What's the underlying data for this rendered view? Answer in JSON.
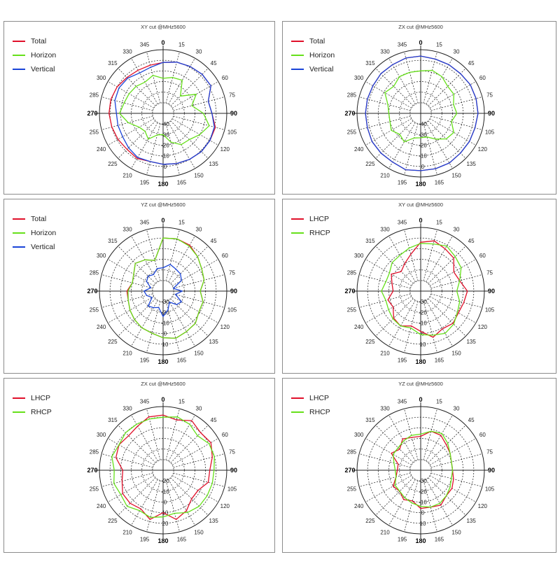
{
  "colors": {
    "total": "#e0102a",
    "horizon": "#66e01a",
    "vertical": "#1a44d8",
    "lhcp": "#e0102a",
    "rhcp": "#66e01a"
  },
  "angle_labels": [
    "0",
    "15",
    "30",
    "45",
    "60",
    "75",
    "90",
    "105",
    "120",
    "135",
    "150",
    "165",
    "180",
    "195",
    "210",
    "225",
    "240",
    "255",
    "270",
    "285",
    "300",
    "315",
    "330",
    "345"
  ],
  "chart_data": [
    {
      "type": "polar",
      "title": "XY cut @MHz5600",
      "rlim": [
        -50,
        10
      ],
      "rings": [
        -40,
        -30,
        -20,
        -10,
        0
      ],
      "ring_labels": [
        "-40",
        "-30",
        "-20",
        "-10",
        "0"
      ],
      "legend_placement": "top-left",
      "series": [
        {
          "name": "Total",
          "color": "#e0102a",
          "angles": [
            0,
            15,
            30,
            45,
            60,
            75,
            90,
            105,
            120,
            135,
            150,
            165,
            180,
            195,
            210,
            225,
            240,
            255,
            270,
            285,
            300,
            315,
            330,
            345
          ],
          "values": [
            -2,
            0,
            1,
            2,
            2,
            -6,
            -4,
            1,
            1,
            1,
            0,
            -1,
            -2,
            -3,
            -1,
            -2,
            -1,
            0,
            1,
            1,
            0,
            -2,
            -3,
            -3
          ]
        },
        {
          "name": "Horizon",
          "color": "#66e01a",
          "angles": [
            0,
            15,
            30,
            45,
            60,
            75,
            90,
            105,
            120,
            135,
            150,
            165,
            180,
            195,
            210,
            225,
            240,
            255,
            270,
            285,
            300,
            315,
            330,
            345
          ],
          "values": [
            -17,
            -15,
            -14,
            -27,
            -14,
            -22,
            -12,
            -5,
            -10,
            -15,
            -16,
            -22,
            -30,
            -29,
            -22,
            -26,
            -24,
            -16,
            -9,
            -12,
            -13,
            -14,
            -16,
            -13
          ]
        },
        {
          "name": "Vertical",
          "color": "#1a44d8",
          "angles": [
            0,
            15,
            30,
            45,
            60,
            75,
            90,
            105,
            120,
            135,
            150,
            165,
            180,
            195,
            210,
            225,
            240,
            255,
            270,
            285,
            300,
            315,
            330,
            345
          ],
          "values": [
            -2,
            0,
            1,
            2,
            2,
            -6,
            -4,
            0,
            1,
            1,
            0,
            -1,
            -2,
            -3,
            -2,
            -4,
            -6,
            -6,
            -6,
            -3,
            -2,
            -3,
            -6,
            -5
          ]
        }
      ]
    },
    {
      "type": "polar",
      "title": "ZX cut @MHz5600",
      "rlim": [
        -50,
        10
      ],
      "rings": [
        -40,
        -30,
        -20,
        -10,
        0
      ],
      "ring_labels": [
        "-40",
        "-30",
        "-20",
        "-10",
        "0"
      ],
      "legend_placement": "top-left",
      "series": [
        {
          "name": "Total",
          "color": "#e0102a",
          "angles": [
            0,
            15,
            30,
            45,
            60,
            75,
            90,
            105,
            120,
            135,
            150,
            165,
            180,
            195,
            210,
            225,
            240,
            255,
            270,
            285,
            300,
            315,
            330,
            345
          ],
          "values": [
            4,
            3,
            3,
            3,
            4,
            4,
            4,
            3,
            3,
            3,
            4,
            4,
            4,
            5,
            3,
            3,
            3,
            2,
            2,
            2,
            2,
            3,
            3,
            4
          ]
        },
        {
          "name": "Horizon",
          "color": "#66e01a",
          "angles": [
            0,
            15,
            30,
            45,
            60,
            75,
            90,
            105,
            120,
            135,
            150,
            165,
            180,
            195,
            210,
            225,
            240,
            255,
            270,
            285,
            300,
            315,
            330,
            345
          ],
          "values": [
            -10,
            -8,
            -10,
            -14,
            -14,
            -18,
            -16,
            -20,
            -14,
            -16,
            -22,
            -27,
            -27,
            -26,
            -19,
            -22,
            -18,
            -20,
            -20,
            -18,
            -11,
            -14,
            -10,
            -10
          ]
        },
        {
          "name": "Vertical",
          "color": "#1a44d8",
          "angles": [
            0,
            15,
            30,
            45,
            60,
            75,
            90,
            105,
            120,
            135,
            150,
            165,
            180,
            195,
            210,
            225,
            240,
            255,
            270,
            285,
            300,
            315,
            330,
            345
          ],
          "values": [
            4,
            3,
            3,
            3,
            4,
            4,
            4,
            3,
            3,
            3,
            4,
            4,
            4,
            5,
            3,
            3,
            3,
            2,
            2,
            2,
            2,
            3,
            3,
            4
          ]
        }
      ]
    },
    {
      "type": "polar",
      "title": "YZ cut @MHz5600",
      "rlim": [
        -40,
        20
      ],
      "rings": [
        -30,
        -20,
        -10,
        0,
        10
      ],
      "ring_labels": [
        "-30",
        "-20",
        "-10",
        "0",
        "10"
      ],
      "legend_placement": "top-left",
      "series": [
        {
          "name": "Total",
          "color": "#e0102a",
          "angles": [
            0,
            15,
            30,
            45,
            60,
            75,
            90,
            105,
            120,
            135,
            150,
            165,
            180,
            195,
            210,
            225,
            240,
            255,
            270,
            285,
            300,
            315,
            330,
            345
          ],
          "values": [
            10,
            11,
            10,
            6,
            2,
            0,
            -5,
            -1,
            -1,
            3,
            4,
            6,
            4,
            1,
            0,
            -2,
            -4,
            -6,
            -6,
            -10,
            -8,
            -3,
            -6,
            -10
          ]
        },
        {
          "name": "Horizon",
          "color": "#66e01a",
          "angles": [
            0,
            15,
            30,
            45,
            60,
            75,
            90,
            105,
            120,
            135,
            150,
            165,
            180,
            195,
            210,
            225,
            240,
            255,
            270,
            285,
            300,
            315,
            330,
            345
          ],
          "values": [
            10,
            11,
            9,
            6,
            2,
            0,
            -5,
            -1,
            -1,
            3,
            4,
            6,
            4,
            1,
            0,
            -2,
            -4,
            -6,
            -7,
            -10,
            -8,
            -3,
            -6,
            -10
          ]
        },
        {
          "name": "Vertical",
          "color": "#1a44d8",
          "angles": [
            0,
            15,
            30,
            45,
            60,
            75,
            90,
            105,
            120,
            135,
            150,
            165,
            180,
            195,
            210,
            225,
            240,
            255,
            270,
            285,
            300,
            315,
            330,
            345
          ],
          "values": [
            -18,
            -14,
            -16,
            -17,
            -20,
            -30,
            -22,
            -28,
            -20,
            -22,
            -28,
            -22,
            -16,
            -24,
            -22,
            -20,
            -28,
            -24,
            -22,
            -28,
            -22,
            -20,
            -22,
            -18
          ]
        }
      ]
    },
    {
      "type": "polar",
      "title": "XY cut @MHz5600",
      "rlim": [
        -40,
        20
      ],
      "rings": [
        -30,
        -20,
        -10,
        0,
        10
      ],
      "ring_labels": [
        "-30",
        "-20",
        "-10",
        "0",
        "10"
      ],
      "legend_placement": "top-left",
      "series": [
        {
          "name": "LHCP",
          "color": "#e0102a",
          "angles": [
            0,
            15,
            30,
            45,
            60,
            75,
            90,
            105,
            120,
            135,
            150,
            165,
            180,
            195,
            210,
            225,
            240,
            255,
            270,
            285,
            300,
            315,
            330,
            345
          ],
          "values": [
            6,
            9,
            6,
            4,
            -4,
            -2,
            4,
            2,
            1,
            3,
            1,
            5,
            -2,
            -6,
            -2,
            -4,
            -10,
            -8,
            -14,
            -12,
            -8,
            -14,
            -10,
            -4
          ]
        },
        {
          "name": "RHCP",
          "color": "#66e01a",
          "angles": [
            0,
            15,
            30,
            45,
            60,
            75,
            90,
            105,
            120,
            135,
            150,
            165,
            180,
            195,
            210,
            225,
            240,
            255,
            270,
            285,
            300,
            315,
            330,
            345
          ],
          "values": [
            5,
            6,
            9,
            6,
            4,
            -2,
            -6,
            -2,
            0,
            4,
            6,
            3,
            1,
            -4,
            -2,
            -3,
            -5,
            -6,
            -3,
            -6,
            -6,
            -2,
            -1,
            2
          ]
        }
      ]
    },
    {
      "type": "polar",
      "title": "ZX cut @MHz5600",
      "rlim": [
        -30,
        30
      ],
      "rings": [
        -20,
        -10,
        0,
        10,
        20
      ],
      "ring_labels": [
        "-20",
        "-10",
        "0",
        "10",
        "20"
      ],
      "legend_placement": "top-left",
      "series": [
        {
          "name": "LHCP",
          "color": "#e0102a",
          "angles": [
            0,
            15,
            30,
            45,
            60,
            75,
            90,
            105,
            120,
            135,
            150,
            165,
            180,
            195,
            210,
            225,
            240,
            255,
            270,
            285,
            300,
            315,
            330,
            345
          ],
          "values": [
            22,
            19,
            24,
            20,
            22,
            18,
            14,
            14,
            8,
            8,
            14,
            18,
            10,
            18,
            12,
            14,
            14,
            10,
            8,
            16,
            18,
            16,
            18,
            22
          ]
        },
        {
          "name": "RHCP",
          "color": "#66e01a",
          "angles": [
            0,
            15,
            30,
            45,
            60,
            75,
            90,
            105,
            120,
            135,
            150,
            165,
            180,
            195,
            210,
            225,
            240,
            255,
            270,
            285,
            300,
            315,
            330,
            345
          ],
          "values": [
            20,
            22,
            20,
            16,
            20,
            20,
            18,
            18,
            18,
            18,
            16,
            12,
            14,
            16,
            14,
            18,
            16,
            18,
            16,
            20,
            18,
            20,
            20,
            20
          ]
        }
      ]
    },
    {
      "type": "polar",
      "title": "YZ cut @MHz5600",
      "rlim": [
        -40,
        20
      ],
      "rings": [
        -30,
        -20,
        -10,
        0,
        10
      ],
      "ring_labels": [
        "-30",
        "-20",
        "-10",
        "0",
        "10"
      ],
      "legend_placement": "top-left",
      "series": [
        {
          "name": "LHCP",
          "color": "#e0102a",
          "angles": [
            0,
            15,
            30,
            45,
            60,
            75,
            90,
            105,
            120,
            135,
            150,
            165,
            180,
            195,
            210,
            225,
            240,
            255,
            270,
            285,
            300,
            315,
            330,
            345
          ],
          "values": [
            -8,
            -2,
            -2,
            -6,
            -8,
            -10,
            -10,
            -8,
            -6,
            -6,
            -2,
            -4,
            -4,
            -10,
            -8,
            -12,
            -10,
            -16,
            -18,
            -18,
            -8,
            -12,
            -6,
            -8
          ]
        },
        {
          "name": "RHCP",
          "color": "#66e01a",
          "angles": [
            0,
            15,
            30,
            45,
            60,
            75,
            90,
            105,
            120,
            135,
            150,
            165,
            180,
            195,
            210,
            225,
            240,
            255,
            270,
            285,
            300,
            315,
            330,
            345
          ],
          "values": [
            -6,
            -2,
            0,
            -4,
            -8,
            -10,
            -10,
            -10,
            -8,
            -6,
            -4,
            -4,
            -6,
            -8,
            -10,
            -12,
            -12,
            -16,
            -16,
            -14,
            -10,
            -10,
            -8,
            -6
          ]
        }
      ]
    }
  ]
}
